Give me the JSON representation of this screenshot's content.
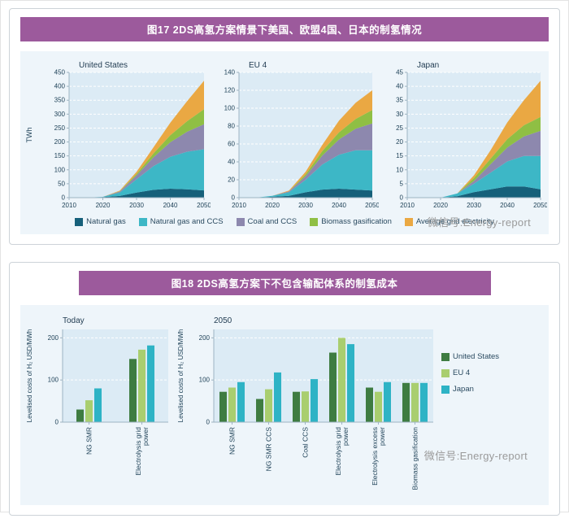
{
  "page": {
    "watermark": "微信号:Energy-report"
  },
  "figure17": {
    "title": "图17 2DS高氢方案情景下美国、欧盟4国、日本的制氢情况"
  },
  "figure18": {
    "title": "图18 2DS高氢方案下不包含输配体系的制氢成本"
  },
  "colors": {
    "header": "#9c5a9c",
    "chart_region_bg": "#eef5fa",
    "plot_bg": "#dcebf5",
    "grid": "#ffffff",
    "axis": "#9db4c2",
    "tick_text": "#1f4258",
    "title_text": "#1f3a50"
  },
  "chart_data": [
    {
      "type": "area",
      "title": "United States",
      "ylabel": "TWh",
      "x": [
        2010,
        2015,
        2020,
        2025,
        2030,
        2035,
        2040,
        2045,
        2050
      ],
      "xticks": [
        2010,
        2020,
        2030,
        2040,
        2050
      ],
      "ylim": [
        0,
        450
      ],
      "yticks": [
        0,
        50,
        100,
        150,
        200,
        250,
        300,
        350,
        400,
        450
      ],
      "series": [
        {
          "name": "Natural gas",
          "color": "#16607a",
          "values": [
            0,
            0,
            2,
            6,
            18,
            28,
            32,
            30,
            26
          ]
        },
        {
          "name": "Natural gas and CCS",
          "color": "#3db7c6",
          "values": [
            0,
            0,
            1,
            12,
            48,
            85,
            115,
            135,
            148
          ]
        },
        {
          "name": "Coal and CCS",
          "color": "#8d88ae",
          "values": [
            0,
            0,
            0,
            4,
            14,
            32,
            52,
            72,
            90
          ]
        },
        {
          "name": "Biomass gasification",
          "color": "#8fbf44",
          "values": [
            0,
            0,
            0,
            1,
            5,
            14,
            25,
            38,
            54
          ]
        },
        {
          "name": "Average grid electricity",
          "color": "#eaa843",
          "values": [
            0,
            0,
            0,
            2,
            8,
            22,
            45,
            72,
            102
          ]
        }
      ]
    },
    {
      "type": "area",
      "title": "EU 4",
      "ylabel": "",
      "x": [
        2010,
        2015,
        2020,
        2025,
        2030,
        2035,
        2040,
        2045,
        2050
      ],
      "xticks": [
        2010,
        2020,
        2030,
        2040,
        2050
      ],
      "ylim": [
        0,
        140
      ],
      "yticks": [
        0,
        20,
        40,
        60,
        80,
        100,
        120,
        140
      ],
      "series": [
        {
          "name": "Natural gas",
          "color": "#16607a",
          "values": [
            0,
            0,
            1,
            2,
            6,
            9,
            10,
            9,
            8
          ]
        },
        {
          "name": "Natural gas and CCS",
          "color": "#3db7c6",
          "values": [
            0,
            0,
            1,
            4,
            14,
            28,
            38,
            44,
            45
          ]
        },
        {
          "name": "Coal and CCS",
          "color": "#8d88ae",
          "values": [
            0,
            0,
            0,
            1,
            4,
            10,
            17,
            24,
            30
          ]
        },
        {
          "name": "Biomass gasification",
          "color": "#8fbf44",
          "values": [
            0,
            0,
            0,
            0,
            2,
            5,
            8,
            11,
            15
          ]
        },
        {
          "name": "Average grid electricity",
          "color": "#eaa843",
          "values": [
            0,
            0,
            0,
            1,
            3,
            7,
            13,
            18,
            22
          ]
        }
      ]
    },
    {
      "type": "area",
      "title": "Japan",
      "ylabel": "",
      "x": [
        2010,
        2015,
        2020,
        2025,
        2030,
        2035,
        2040,
        2045,
        2050
      ],
      "xticks": [
        2010,
        2020,
        2030,
        2040,
        2050
      ],
      "ylim": [
        0,
        45
      ],
      "yticks": [
        0,
        5,
        10,
        15,
        20,
        25,
        30,
        35,
        40,
        45
      ],
      "series": [
        {
          "name": "Natural gas",
          "color": "#16607a",
          "values": [
            0,
            0,
            0,
            0.5,
            2,
            3,
            4,
            4,
            3
          ]
        },
        {
          "name": "Natural gas and CCS",
          "color": "#3db7c6",
          "values": [
            0,
            0,
            0,
            1,
            3,
            6,
            9,
            11,
            12
          ]
        },
        {
          "name": "Coal and CCS",
          "color": "#8d88ae",
          "values": [
            0,
            0,
            0,
            0,
            1,
            3,
            5,
            7,
            9
          ]
        },
        {
          "name": "Biomass gasification",
          "color": "#8fbf44",
          "values": [
            0,
            0,
            0,
            0,
            1,
            2,
            3,
            4,
            5
          ]
        },
        {
          "name": "Average grid electricity",
          "color": "#eaa843",
          "values": [
            0,
            0,
            0,
            0,
            1,
            3,
            6,
            9,
            13
          ]
        }
      ]
    },
    {
      "type": "bar",
      "title": "Today",
      "ylabel": "Levelised costs of H₂ USD/MWh",
      "ylim": [
        0,
        220
      ],
      "yticks": [
        0,
        100,
        200
      ],
      "categories": [
        "NG SMR",
        "Electrolysis grid\npower"
      ],
      "series": [
        {
          "name": "United States",
          "color": "#3e7c41",
          "values": [
            30,
            150
          ]
        },
        {
          "name": "EU 4",
          "color": "#a9ce6f",
          "values": [
            52,
            172
          ]
        },
        {
          "name": "Japan",
          "color": "#2eb3c5",
          "values": [
            80,
            182
          ]
        }
      ]
    },
    {
      "type": "bar",
      "title": "2050",
      "ylabel": "Levelised costs of H₂ USD/MWh",
      "ylim": [
        0,
        220
      ],
      "yticks": [
        0,
        100,
        200
      ],
      "categories": [
        "NG SMR",
        "NG SMR CCS",
        "Coal CCS",
        "Electrolysis grid\npower",
        "Electrolysis excess\npower",
        "Biomass gasification"
      ],
      "series": [
        {
          "name": "United States",
          "color": "#3e7c41",
          "values": [
            72,
            55,
            72,
            165,
            82,
            93
          ]
        },
        {
          "name": "EU 4",
          "color": "#a9ce6f",
          "values": [
            82,
            78,
            73,
            200,
            72,
            93
          ]
        },
        {
          "name": "Japan",
          "color": "#2eb3c5",
          "values": [
            95,
            118,
            102,
            185,
            95,
            93
          ]
        }
      ]
    }
  ]
}
